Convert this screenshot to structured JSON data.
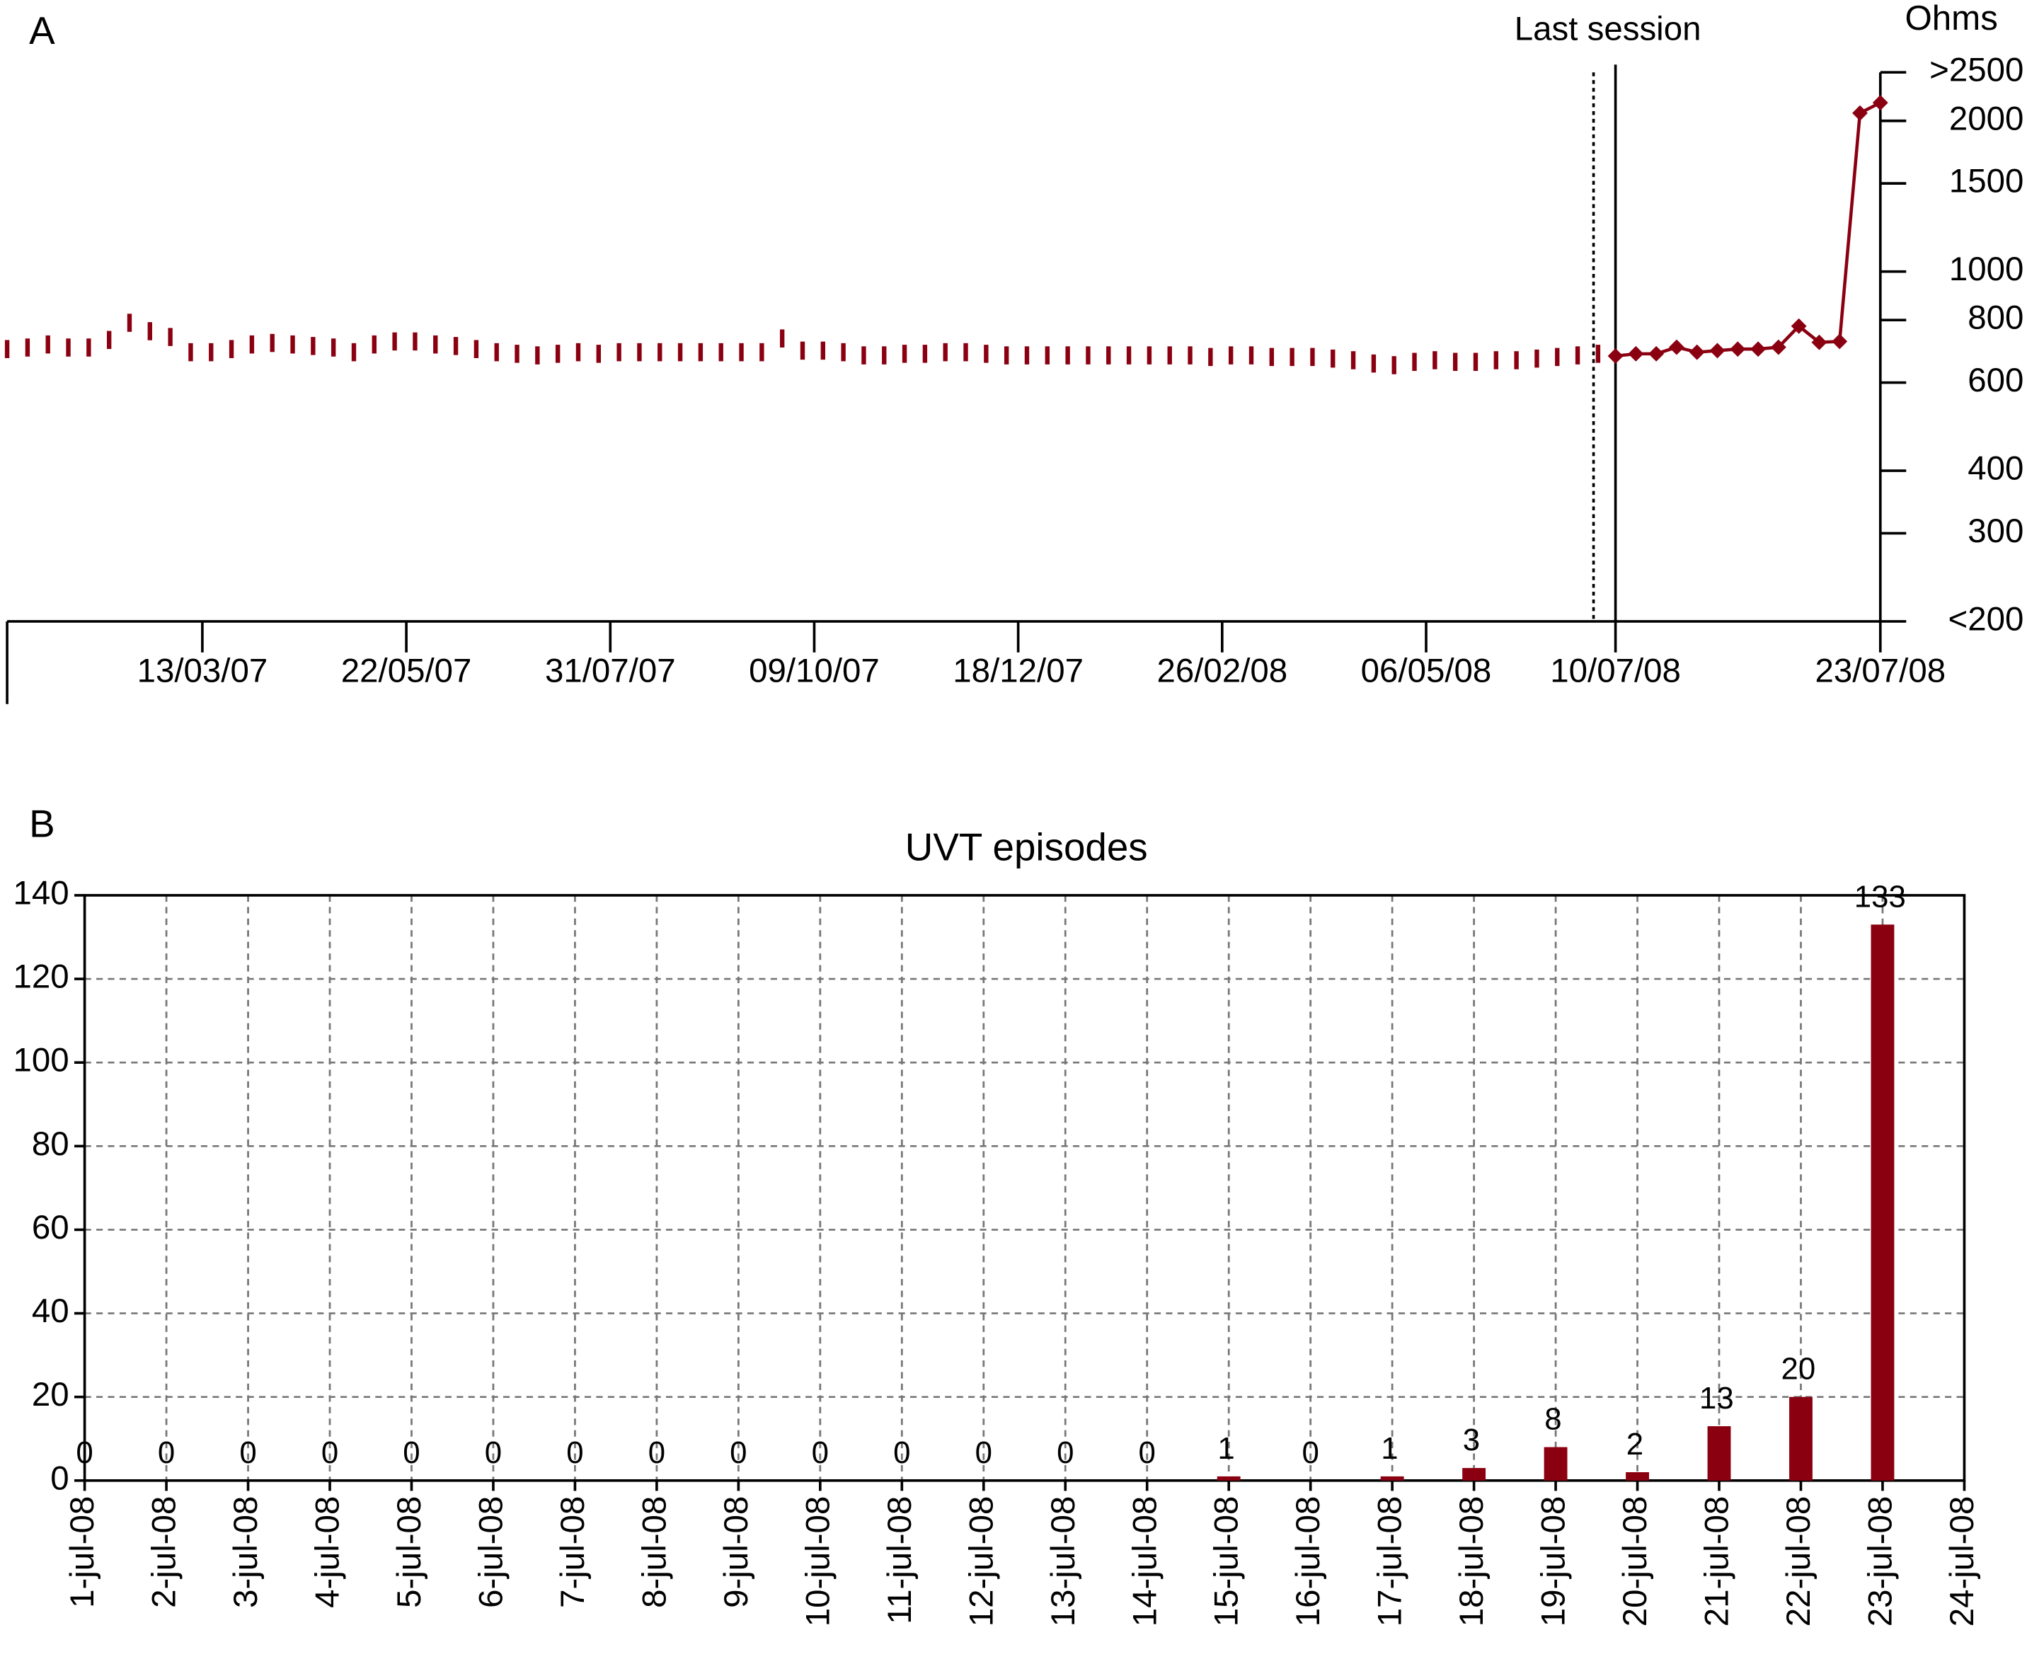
{
  "chart_data": [
    {
      "type": "line",
      "panel_label": "A",
      "y_label": "Ohms",
      "log": true,
      "xlim": [
        "05/01/07",
        "23/07/08"
      ],
      "xticks": [
        "13/03/07",
        "22/05/07",
        "31/07/07",
        "09/10/07",
        "18/12/07",
        "26/02/08",
        "06/05/08",
        "10/07/08",
        "23/07/08"
      ],
      "ylim": [
        200,
        2500
      ],
      "yticks": [
        {
          "value": 200,
          "label": "<200"
        },
        300,
        400,
        600,
        800,
        1000,
        1500,
        2000,
        {
          "value": 2500,
          "label": ">2500"
        }
      ],
      "annotation": {
        "text": "Last session",
        "x": "10/07/08"
      },
      "series": [
        {
          "color": "#8b0011",
          "style": "ticks",
          "x": [
            "05/01/07",
            "12/01/07",
            "19/01/07",
            "26/01/07",
            "02/02/07",
            "09/02/07",
            "16/02/07",
            "23/02/07",
            "02/03/07",
            "09/03/07",
            "16/03/07",
            "23/03/07",
            "30/03/07",
            "06/04/07",
            "13/04/07",
            "20/04/07",
            "27/04/07",
            "04/05/07",
            "11/05/07",
            "18/05/07",
            "25/05/07",
            "01/06/07",
            "08/06/07",
            "15/06/07",
            "22/06/07",
            "29/06/07",
            "06/07/07",
            "13/07/07",
            "20/07/07",
            "27/07/07",
            "03/08/07",
            "10/08/07",
            "17/08/07",
            "24/08/07",
            "31/08/07",
            "07/09/07",
            "14/09/07",
            "21/09/07",
            "28/09/07",
            "05/10/07",
            "12/10/07",
            "19/10/07",
            "26/10/07",
            "02/11/07",
            "09/11/07",
            "16/11/07",
            "23/11/07",
            "30/11/07",
            "07/12/07",
            "14/12/07",
            "21/12/07",
            "28/12/07",
            "04/01/08",
            "11/01/08",
            "18/01/08",
            "25/01/08",
            "01/02/08",
            "08/02/08",
            "15/02/08",
            "22/02/08",
            "29/02/08",
            "07/03/08",
            "14/03/08",
            "21/03/08",
            "28/03/08",
            "04/04/08",
            "11/04/08",
            "18/04/08",
            "25/04/08",
            "02/05/08",
            "09/05/08",
            "16/05/08",
            "23/05/08",
            "30/05/08",
            "06/06/08",
            "13/06/08",
            "20/06/08",
            "27/06/08",
            "04/07/08"
          ],
          "values": [
            700,
            705,
            715,
            705,
            705,
            730,
            790,
            760,
            740,
            690,
            690,
            700,
            715,
            720,
            715,
            710,
            705,
            690,
            715,
            725,
            725,
            715,
            710,
            700,
            690,
            685,
            680,
            685,
            690,
            685,
            690,
            690,
            690,
            690,
            690,
            690,
            690,
            690,
            735,
            695,
            695,
            690,
            680,
            680,
            685,
            685,
            690,
            690,
            685,
            680,
            680,
            680,
            680,
            680,
            680,
            680,
            680,
            680,
            680,
            675,
            680,
            680,
            675,
            675,
            675,
            670,
            665,
            655,
            650,
            660,
            665,
            660,
            660,
            665,
            665,
            670,
            675,
            680,
            685
          ]
        },
        {
          "color": "#8b0011",
          "style": "line-diamond",
          "x": [
            "10/07/08",
            "11/07/08",
            "12/07/08",
            "13/07/08",
            "14/07/08",
            "15/07/08",
            "16/07/08",
            "17/07/08",
            "18/07/08",
            "19/07/08",
            "20/07/08",
            "21/07/08",
            "22/07/08",
            "23/07/08"
          ],
          "values": [
            678,
            685,
            685,
            706,
            690,
            695,
            700,
            700,
            706,
            778,
            722,
            725,
            2073,
            2174
          ]
        }
      ]
    },
    {
      "type": "bar",
      "panel_label": "B",
      "title": "UVT episodes",
      "color": "#8b0011",
      "grid": true,
      "categories": [
        "1-jul-08",
        "2-jul-08",
        "3-jul-08",
        "4-jul-08",
        "5-jul-08",
        "6-jul-08",
        "7-jul-08",
        "8-jul-08",
        "9-jul-08",
        "10-jul-08",
        "11-jul-08",
        "12-jul-08",
        "13-jul-08",
        "14-jul-08",
        "15-jul-08",
        "16-jul-08",
        "17-jul-08",
        "18-jul-08",
        "19-jul-08",
        "20-jul-08",
        "21-jul-08",
        "22-jul-08",
        "23-jul-08",
        "24-jul-08"
      ],
      "values": [
        0,
        0,
        0,
        0,
        0,
        0,
        0,
        0,
        0,
        0,
        0,
        0,
        0,
        0,
        1,
        0,
        1,
        3,
        8,
        2,
        13,
        20,
        133,
        null
      ],
      "ylim": [
        0,
        140
      ],
      "yticks": [
        0,
        20,
        40,
        60,
        80,
        100,
        120,
        140
      ]
    }
  ]
}
